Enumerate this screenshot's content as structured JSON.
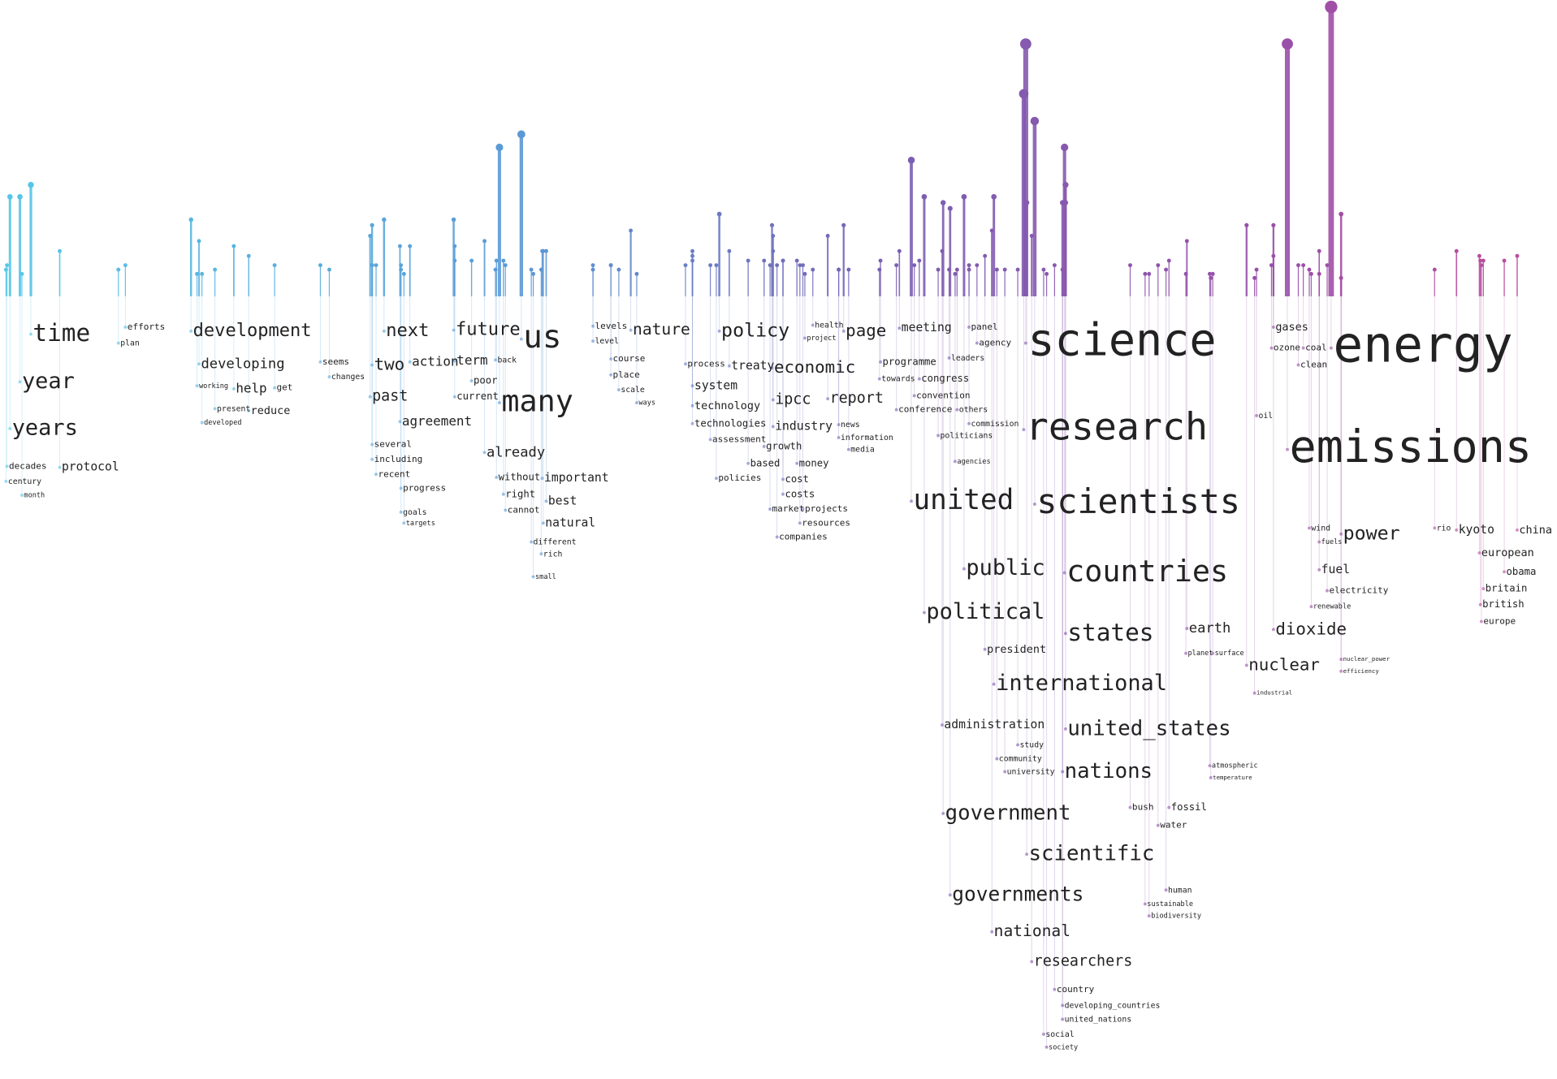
{
  "words": [
    "time",
    "year",
    "years",
    "decades",
    "century",
    "month",
    "protocol",
    "efforts",
    "plan",
    "development",
    "developing",
    "help",
    "reduce",
    "present",
    "developed",
    "working",
    "get",
    "seems",
    "changes",
    "next",
    "two",
    "past",
    "action",
    "term",
    "future",
    "agreement",
    "poor",
    "current",
    "several",
    "including",
    "recent",
    "progress",
    "goals",
    "targets",
    "us",
    "many",
    "back",
    "already",
    "important",
    "best",
    "natural",
    "without",
    "right",
    "cannot",
    "different",
    "rich",
    "small",
    "levels",
    "level",
    "course",
    "place",
    "scale",
    "nature",
    "ways",
    "policy",
    "process",
    "treaty",
    "system",
    "technology",
    "technologies",
    "economic",
    "ipcc",
    "industry",
    "growth",
    "based",
    "money",
    "cost",
    "costs",
    "assessment",
    "policies",
    "projects",
    "resources",
    "companies",
    "market",
    "page",
    "report",
    "news",
    "information",
    "media",
    "health",
    "project",
    "meeting",
    "programme",
    "towards",
    "congress",
    "convention",
    "conference",
    "panel",
    "agency",
    "leaders",
    "others",
    "commission",
    "politicians",
    "agencies",
    "science",
    "research",
    "united",
    "scientists",
    "countries",
    "public",
    "political",
    "states",
    "president",
    "international",
    "united_states",
    "administration",
    "study",
    "community",
    "university",
    "nations",
    "government",
    "scientific",
    "governments",
    "national",
    "researchers",
    "country",
    "developing_countries",
    "united_nations",
    "social",
    "society",
    "earth",
    "planet",
    "surface",
    "bush",
    "fossil",
    "water",
    "atmospheric",
    "temperature",
    "human",
    "sustainable",
    "biodiversity",
    "gases",
    "ozone",
    "coal",
    "clean",
    "energy",
    "emissions",
    "oil",
    "power",
    "wind",
    "fuels",
    "fuel",
    "electricity",
    "renewable",
    "dioxide",
    "nuclear",
    "nuclear_power",
    "efficiency",
    "industrial",
    "rio",
    "kyoto",
    "china",
    "european",
    "obama",
    "britain",
    "british",
    "europe"
  ]
}
